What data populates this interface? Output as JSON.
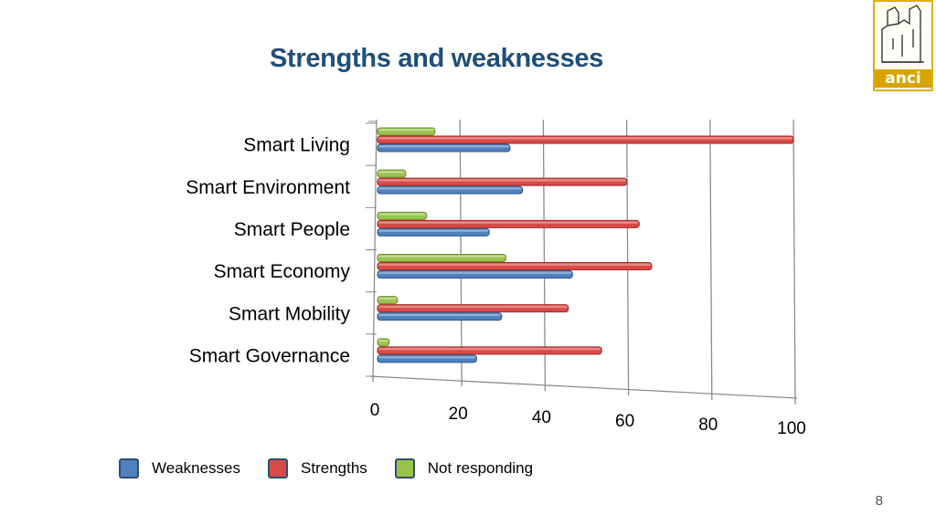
{
  "slide": {
    "title": "Strengths and weaknesses",
    "page_number": "8",
    "logo_text": "anci"
  },
  "colors": {
    "weaknesses": "#4f81bd",
    "strengths": "#d94a46",
    "not_responding": "#9bc24d",
    "title": "#1f4e79"
  },
  "legend": {
    "items": [
      {
        "label": "Weaknesses",
        "color": "#4f81bd"
      },
      {
        "label": "Strengths",
        "color": "#d94a46"
      },
      {
        "label": "Not responding",
        "color": "#9bc24d"
      }
    ]
  },
  "chart_data": {
    "type": "bar",
    "orientation": "horizontal",
    "title": "",
    "xlabel": "",
    "ylabel": "",
    "xlim": [
      0,
      100
    ],
    "x_ticks": [
      "0",
      "20",
      "40",
      "60",
      "80",
      "100"
    ],
    "categories": [
      "Smart Living",
      "Smart Environment",
      "Smart People",
      "Smart Economy",
      "Smart Mobility",
      "Smart Governance"
    ],
    "series": [
      {
        "name": "Weaknesses",
        "values": [
          32,
          35,
          27,
          47,
          30,
          24
        ]
      },
      {
        "name": "Strengths",
        "values": [
          100,
          60,
          63,
          66,
          46,
          54
        ]
      },
      {
        "name": "Not responding",
        "values": [
          14,
          7,
          12,
          31,
          5,
          3
        ]
      }
    ],
    "grid": true,
    "legend_position": "bottom"
  }
}
